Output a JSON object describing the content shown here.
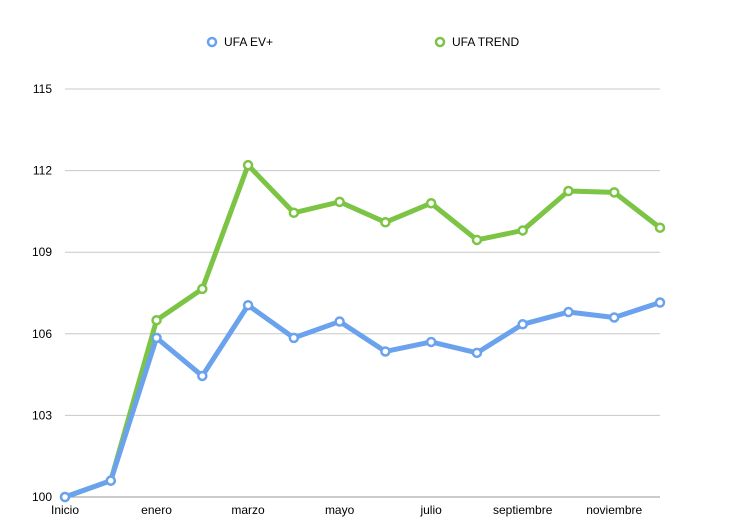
{
  "chart_data": {
    "type": "line",
    "title": "",
    "xlabel": "",
    "ylabel": "",
    "x": [
      "Inicio",
      "",
      "enero",
      "",
      "marzo",
      "",
      "mayo",
      "",
      "julio",
      "",
      "septiembre",
      "",
      "noviembre",
      ""
    ],
    "ylim": [
      100,
      115
    ],
    "yticks": [
      100,
      103,
      106,
      109,
      112,
      115
    ],
    "grid": true,
    "legend_position": "top",
    "series": [
      {
        "name": "UFA EV+",
        "color": "#6aa2ee",
        "values": [
          100.0,
          100.6,
          105.85,
          104.45,
          107.05,
          105.85,
          106.45,
          105.35,
          105.7,
          105.3,
          106.35,
          106.8,
          106.6,
          107.15
        ]
      },
      {
        "name": "UFA TREND",
        "color": "#7cc444",
        "values": [
          100.0,
          100.6,
          106.5,
          107.65,
          112.2,
          110.45,
          110.85,
          110.1,
          110.8,
          109.45,
          109.8,
          111.25,
          111.2,
          109.9
        ]
      }
    ]
  }
}
